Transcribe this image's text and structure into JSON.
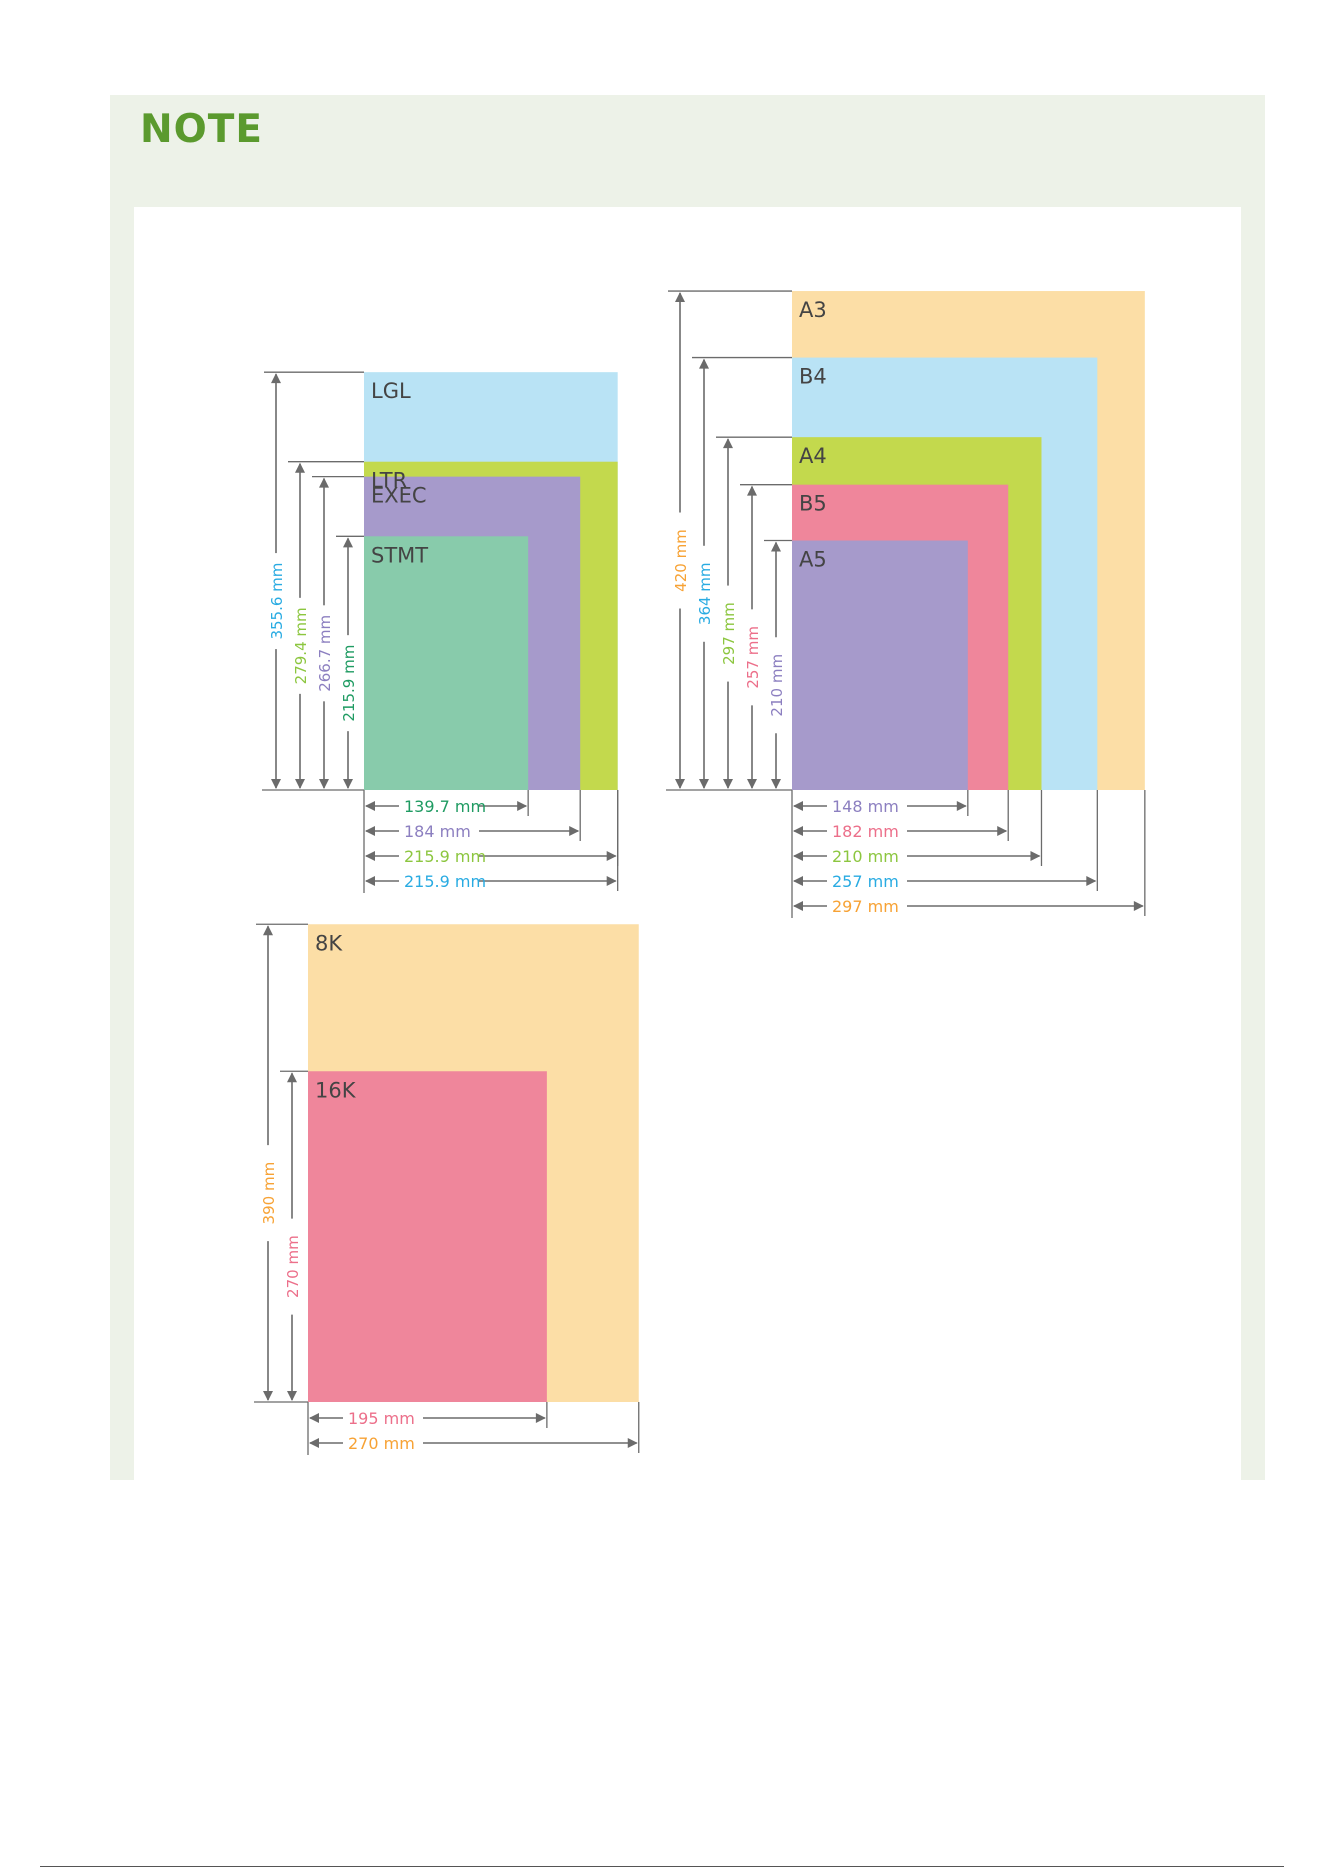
{
  "note": {
    "title": "NOTE"
  },
  "colors": {
    "blue": "#b9e3f5",
    "lime": "#c3d94d",
    "purple": "#a69acb",
    "teal": "#88cbab",
    "orange": "#fcdea6",
    "pink": "#ef869b",
    "arrow": "#6b6b6b",
    "text_blue": "#29abe2",
    "text_green": "#8cc63f",
    "text_purple": "#8c7fc0",
    "text_teal": "#1f9b62",
    "text_orange": "#f7a234",
    "text_pink": "#ec6f8a"
  },
  "groups": [
    {
      "id": "us",
      "papers": [
        {
          "label": "LGL",
          "w_mm": 215.9,
          "h_mm": 355.6,
          "color": "blue",
          "w_text": "215.9 mm",
          "h_text": "355.6 mm",
          "text_color": "text_blue"
        },
        {
          "label": "LTR",
          "w_mm": 215.9,
          "h_mm": 279.4,
          "color": "lime",
          "w_text": "215.9 mm",
          "h_text": "279.4 mm",
          "text_color": "text_green"
        },
        {
          "label": "EXEC",
          "w_mm": 184,
          "h_mm": 266.7,
          "color": "purple",
          "w_text": "184 mm",
          "h_text": "266.7 mm",
          "text_color": "text_purple"
        },
        {
          "label": "STMT",
          "w_mm": 139.7,
          "h_mm": 215.9,
          "color": "teal",
          "w_text": "139.7 mm",
          "h_text": "215.9 mm",
          "text_color": "text_teal"
        }
      ]
    },
    {
      "id": "iso",
      "papers": [
        {
          "label": "A3",
          "w_mm": 297,
          "h_mm": 420,
          "color": "orange",
          "w_text": "297 mm",
          "h_text": "420 mm",
          "text_color": "text_orange"
        },
        {
          "label": "B4",
          "w_mm": 257,
          "h_mm": 364,
          "color": "blue",
          "w_text": "257 mm",
          "h_text": "364  mm",
          "text_color": "text_blue"
        },
        {
          "label": "A4",
          "w_mm": 210,
          "h_mm": 297,
          "color": "lime",
          "w_text": "210 mm",
          "h_text": "297 mm",
          "text_color": "text_green"
        },
        {
          "label": "B5",
          "w_mm": 182,
          "h_mm": 257,
          "color": "pink",
          "w_text": "182 mm",
          "h_text": "257 mm",
          "text_color": "text_pink"
        },
        {
          "label": "A5",
          "w_mm": 148,
          "h_mm": 210,
          "color": "purple",
          "w_text": "148 mm",
          "h_text": "210 mm",
          "text_color": "text_purple"
        }
      ]
    },
    {
      "id": "chinese",
      "papers": [
        {
          "label": "8K",
          "w_mm": 270,
          "h_mm": 390,
          "color": "orange",
          "w_text": "270 mm",
          "h_text": "390 mm",
          "text_color": "text_orange"
        },
        {
          "label": "16K",
          "w_mm": 195,
          "h_mm": 270,
          "color": "pink",
          "w_text": "195 mm",
          "h_text": "270 mm",
          "text_color": "text_pink"
        }
      ]
    }
  ]
}
